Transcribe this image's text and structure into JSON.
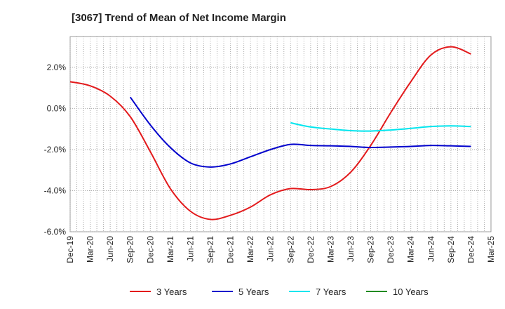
{
  "chart_data": {
    "type": "line",
    "title": "[3067]  Trend of Mean of Net Income Margin",
    "xlabel": "",
    "ylabel": "",
    "x_ticks": [
      "Dec-19",
      "Mar-20",
      "Jun-20",
      "Sep-20",
      "Dec-20",
      "Mar-21",
      "Jun-21",
      "Sep-21",
      "Dec-21",
      "Mar-22",
      "Jun-22",
      "Sep-22",
      "Dec-22",
      "Mar-23",
      "Jun-23",
      "Sep-23",
      "Dec-23",
      "Mar-24",
      "Jun-24",
      "Sep-24",
      "Dec-24",
      "Mar-25"
    ],
    "y_ticks": [
      2,
      0,
      -2,
      -4,
      -6
    ],
    "y_tick_labels": [
      "2.0%",
      "0.0%",
      "-2.0%",
      "-4.0%",
      "-6.0%"
    ],
    "ylim": [
      -6,
      3.5
    ],
    "grid": true,
    "legend_position": "bottom",
    "series": [
      {
        "name": "3 Years",
        "color": "#e31a1c",
        "x": [
          "Dec-19",
          "Mar-20",
          "Jun-20",
          "Sep-20",
          "Dec-20",
          "Mar-21",
          "Jun-21",
          "Sep-21",
          "Dec-21",
          "Mar-22",
          "Jun-22",
          "Sep-22",
          "Dec-22",
          "Mar-23",
          "Jun-23",
          "Sep-23",
          "Dec-23",
          "Mar-24",
          "Jun-24",
          "Sep-24",
          "Dec-24"
        ],
        "values": [
          1.3,
          1.1,
          0.6,
          -0.4,
          -2.1,
          -3.9,
          -5.0,
          -5.4,
          -5.2,
          -4.8,
          -4.2,
          -3.9,
          -3.95,
          -3.8,
          -3.1,
          -1.8,
          -0.2,
          1.3,
          2.6,
          3.0,
          2.65
        ]
      },
      {
        "name": "5 Years",
        "color": "#0000cc",
        "x": [
          "Sep-20",
          "Dec-20",
          "Mar-21",
          "Jun-21",
          "Sep-21",
          "Dec-21",
          "Mar-22",
          "Jun-22",
          "Sep-22",
          "Dec-22",
          "Mar-23",
          "Jun-23",
          "Sep-23",
          "Dec-23",
          "Mar-24",
          "Jun-24",
          "Sep-24",
          "Dec-24"
        ],
        "values": [
          0.55,
          -0.8,
          -1.9,
          -2.65,
          -2.85,
          -2.7,
          -2.35,
          -2.0,
          -1.75,
          -1.8,
          -1.82,
          -1.85,
          -1.9,
          -1.88,
          -1.85,
          -1.8,
          -1.82,
          -1.85
        ]
      },
      {
        "name": "7 Years",
        "color": "#00e5ee",
        "x": [
          "Sep-22",
          "Dec-22",
          "Mar-23",
          "Jun-23",
          "Sep-23",
          "Dec-23",
          "Mar-24",
          "Jun-24",
          "Sep-24",
          "Dec-24"
        ],
        "values": [
          -0.7,
          -0.9,
          -1.0,
          -1.08,
          -1.1,
          -1.05,
          -0.97,
          -0.88,
          -0.85,
          -0.88
        ]
      },
      {
        "name": "10 Years",
        "color": "#228b22",
        "x": [],
        "values": []
      }
    ]
  }
}
